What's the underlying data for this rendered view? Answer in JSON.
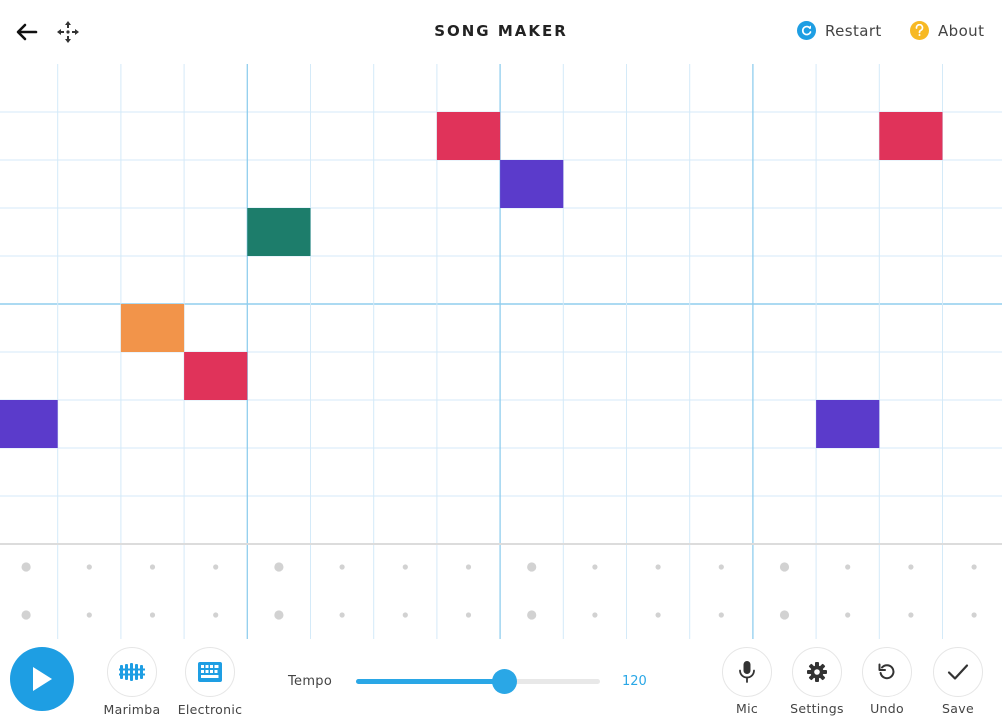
{
  "header": {
    "title": "SONG MAKER",
    "restart_label": "Restart",
    "about_label": "About"
  },
  "colors": {
    "accent": "#1e9ee3",
    "grid_line": "#d4eaf8",
    "bar_line": "#90cdee",
    "about_yellow": "#f7b924",
    "note_colors": [
      "#e0335a",
      "#5b3bcb",
      "#1d7d6b",
      "#f2944a"
    ]
  },
  "grid": {
    "columns": 16,
    "rows": 10,
    "notes": [
      {
        "col": 0,
        "row": 7,
        "color": "#5b3bcb"
      },
      {
        "col": 2,
        "row": 5,
        "color": "#f2944a"
      },
      {
        "col": 3,
        "row": 6,
        "color": "#e0335a"
      },
      {
        "col": 4,
        "row": 3,
        "color": "#1d7d6b"
      },
      {
        "col": 7,
        "row": 1,
        "color": "#e0335a"
      },
      {
        "col": 8,
        "row": 2,
        "color": "#5b3bcb"
      },
      {
        "col": 13,
        "row": 7,
        "color": "#5b3bcb"
      },
      {
        "col": 14,
        "row": 1,
        "color": "#e0335a"
      }
    ]
  },
  "rhythm": {
    "rows": 2
  },
  "instruments": {
    "melody_label": "Marimba",
    "rhythm_label": "Electronic"
  },
  "tempo": {
    "label": "Tempo",
    "value": "120",
    "fraction": 0.607
  },
  "toolbar": {
    "mic_label": "Mic",
    "settings_label": "Settings",
    "undo_label": "Undo",
    "save_label": "Save"
  }
}
